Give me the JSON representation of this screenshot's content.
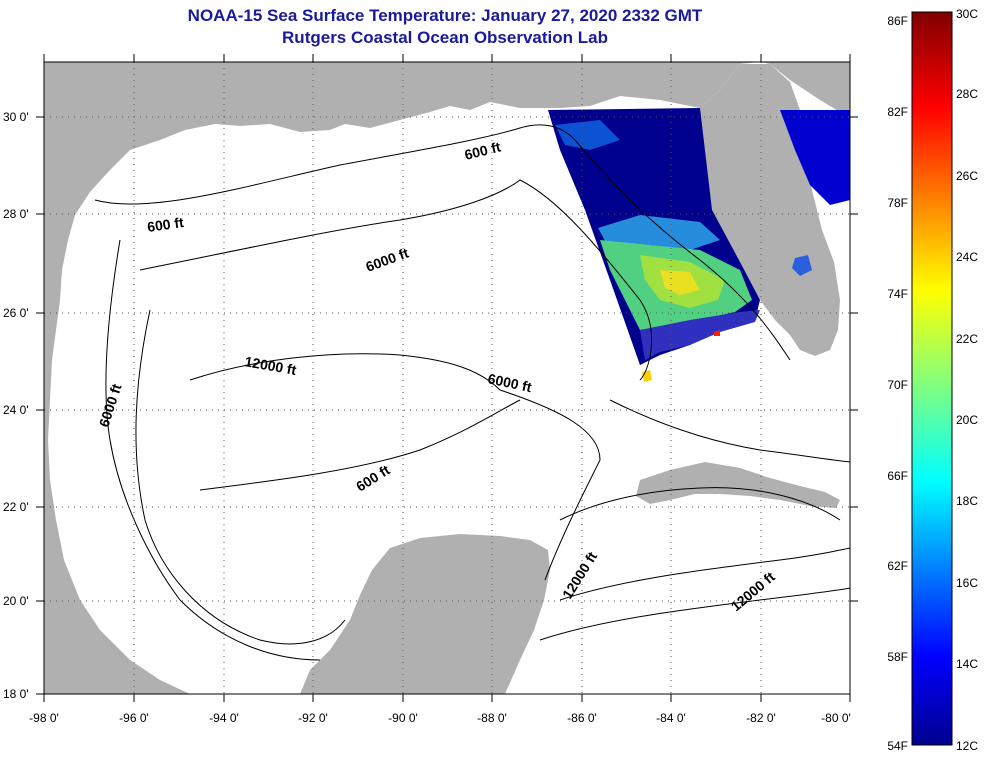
{
  "header": {
    "title": "NOAA-15 Sea Surface Temperature:  January 27, 2020 2332 GMT",
    "subtitle": "Rutgers Coastal Ocean Observation Lab"
  },
  "map": {
    "lat_ticks": [
      "30 0'",
      "28 0'",
      "26 0'",
      "24 0'",
      "22 0'",
      "20 0'",
      "18 0'"
    ],
    "lon_ticks": [
      "-98 0'",
      "-96 0'",
      "-94 0'",
      "-92 0'",
      "-90 0'",
      "-88 0'",
      "-86 0'",
      "-84 0'",
      "-82 0'",
      "-80 0'"
    ],
    "contour_labels": [
      "600 ft",
      "600 ft",
      "6000 ft",
      "6000 ft",
      "12000 ft",
      "6000 ft",
      "600 ft",
      "12000 ft",
      "12000 ft"
    ]
  },
  "colorbar": {
    "fahrenheit": [
      "86F",
      "82F",
      "78F",
      "74F",
      "70F",
      "66F",
      "62F",
      "58F",
      "54F"
    ],
    "celsius": [
      "30C",
      "28C",
      "26C",
      "24C",
      "22C",
      "20C",
      "18C",
      "16C",
      "14C",
      "12C"
    ]
  },
  "colors": {
    "title": "#1a1a9a",
    "land": "#b0b0b0",
    "water": "#ffffff",
    "sst_cold": "#00008f",
    "sst_warm": "#800000"
  }
}
